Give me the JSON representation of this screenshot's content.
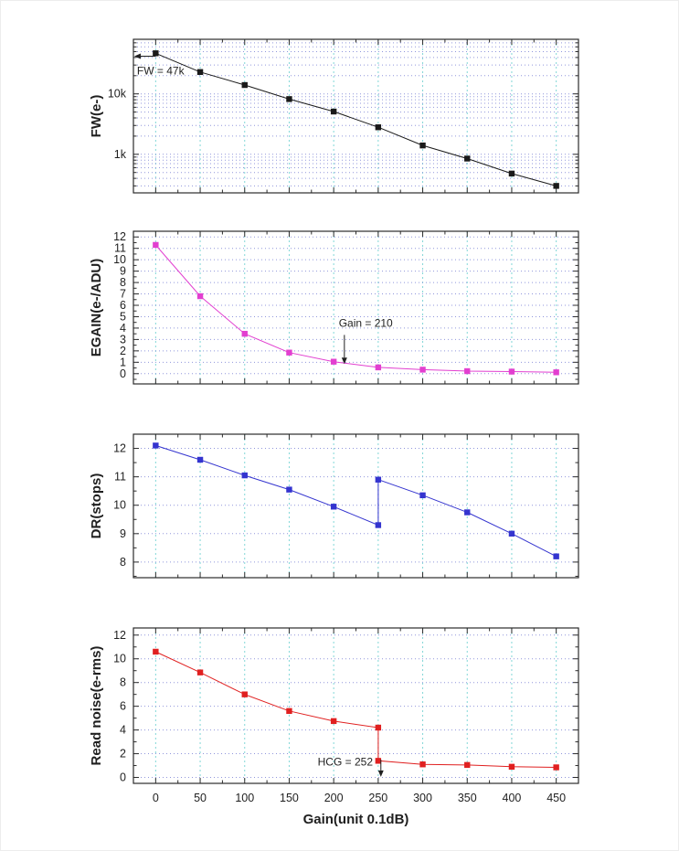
{
  "x_axis": {
    "label": "Gain(unit 0.1dB)",
    "lim": [
      -25,
      475
    ],
    "ticks": [
      0,
      50,
      100,
      150,
      200,
      250,
      300,
      350,
      400,
      450
    ],
    "minor_step": 25
  },
  "style": {
    "grid_vertical": "#82d7d7",
    "grid_horizontal": "#9096dc",
    "frame": "#2b2b2b",
    "text": "#1f1f1f",
    "background": "#ffffff"
  },
  "chart_data": [
    {
      "type": "line",
      "name": "full-well",
      "ylabel": "FW(e-)",
      "yscale": "log",
      "ylim": [
        230,
        80000
      ],
      "yticks": [
        {
          "v": 1000,
          "label": "1k"
        },
        {
          "v": 10000,
          "label": "10k"
        }
      ],
      "x": [
        0,
        50,
        100,
        150,
        200,
        250,
        300,
        350,
        400,
        450
      ],
      "values": [
        47000,
        23000,
        14000,
        8200,
        5100,
        2800,
        1400,
        850,
        480,
        300
      ],
      "color": "#1a1a1a",
      "annotation": {
        "text": "FW = 47k",
        "text_x": -21,
        "text_y": 21000,
        "anchor": "start",
        "arrow": {
          "x1": 0,
          "y1": 42000,
          "x2": -24,
          "y2": 42000
        }
      }
    },
    {
      "type": "line",
      "name": "egain",
      "ylabel": "EGAIN(e-/ADU)",
      "yscale": "linear",
      "ylim": [
        -0.9,
        12.5
      ],
      "yminor_step": 0.5,
      "yticks": [
        {
          "v": 0,
          "label": "0"
        },
        {
          "v": 1,
          "label": "1"
        },
        {
          "v": 2,
          "label": "2"
        },
        {
          "v": 3,
          "label": "3"
        },
        {
          "v": 4,
          "label": "4"
        },
        {
          "v": 5,
          "label": "5"
        },
        {
          "v": 6,
          "label": "6"
        },
        {
          "v": 7,
          "label": "7"
        },
        {
          "v": 8,
          "label": "8"
        },
        {
          "v": 9,
          "label": "9"
        },
        {
          "v": 10,
          "label": "10"
        },
        {
          "v": 11,
          "label": "11"
        },
        {
          "v": 12,
          "label": "12"
        }
      ],
      "x": [
        0,
        50,
        100,
        150,
        200,
        250,
        300,
        350,
        400,
        450
      ],
      "values": [
        11.3,
        6.8,
        3.5,
        1.85,
        1.05,
        0.55,
        0.35,
        0.22,
        0.18,
        0.12
      ],
      "color": "#e23fd0",
      "annotation": {
        "text": "Gain = 210",
        "text_x": 236,
        "text_y": 4.1,
        "anchor": "middle",
        "arrow": {
          "x1": 212,
          "y1": 3.4,
          "x2": 212,
          "y2": 0.85
        }
      }
    },
    {
      "type": "line",
      "name": "dynamic-range",
      "ylabel": "DR(stops)",
      "yscale": "linear",
      "ylim": [
        7.45,
        12.5
      ],
      "yminor_step": 0.5,
      "yticks": [
        {
          "v": 8,
          "label": "8"
        },
        {
          "v": 9,
          "label": "9"
        },
        {
          "v": 10,
          "label": "10"
        },
        {
          "v": 11,
          "label": "11"
        },
        {
          "v": 12,
          "label": "12"
        }
      ],
      "x": [
        0,
        50,
        100,
        150,
        200,
        250,
        250,
        300,
        350,
        400,
        450
      ],
      "values": [
        12.1,
        11.6,
        11.05,
        10.55,
        9.95,
        9.3,
        10.9,
        10.35,
        9.75,
        9.0,
        8.2
      ],
      "color": "#3434cf"
    },
    {
      "type": "line",
      "name": "read-noise",
      "ylabel": "Read noise(e-rms)",
      "yscale": "linear",
      "ylim": [
        -0.5,
        12.6
      ],
      "yminor_step": 1,
      "yticks": [
        {
          "v": 0,
          "label": "0"
        },
        {
          "v": 2,
          "label": "2"
        },
        {
          "v": 4,
          "label": "4"
        },
        {
          "v": 6,
          "label": "6"
        },
        {
          "v": 8,
          "label": "8"
        },
        {
          "v": 10,
          "label": "10"
        },
        {
          "v": 12,
          "label": "12"
        }
      ],
      "x": [
        0,
        50,
        100,
        150,
        200,
        250,
        250,
        300,
        350,
        400,
        450
      ],
      "values": [
        10.6,
        8.85,
        7.0,
        5.6,
        4.75,
        4.2,
        1.4,
        1.1,
        1.05,
        0.9,
        0.85
      ],
      "color": "#e02020",
      "annotation": {
        "text": "HCG = 252",
        "text_x": 244,
        "text_y": 1.0,
        "anchor": "end",
        "arrow": {
          "x1": 253,
          "y1": 1.5,
          "x2": 253,
          "y2": 0.05
        }
      }
    }
  ]
}
